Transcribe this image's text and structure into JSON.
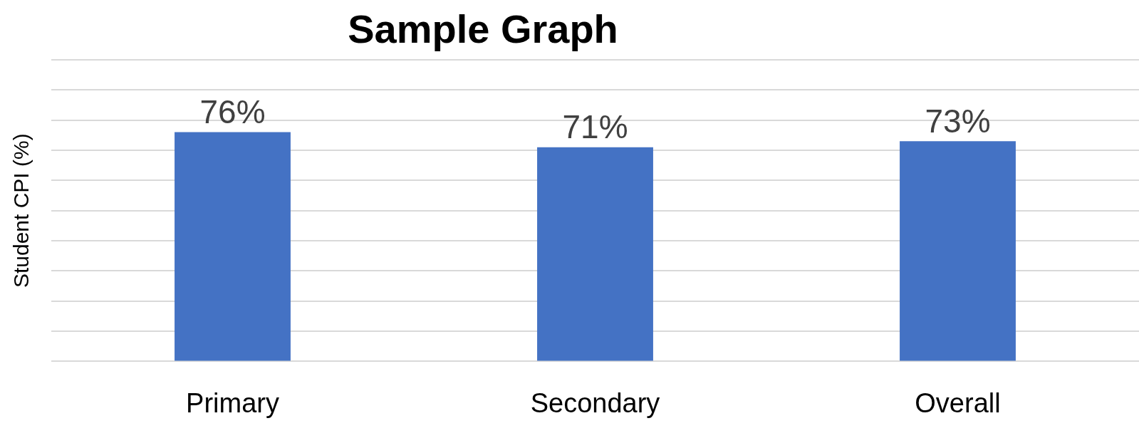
{
  "chart_data": {
    "type": "bar",
    "title": "Sample Graph",
    "ylabel": "Student CPI (%)",
    "categories": [
      "Primary",
      "Secondary",
      "Overall"
    ],
    "values": [
      76,
      71,
      73
    ],
    "value_labels": [
      "76%",
      "71%",
      "73%"
    ],
    "color": "#4472c4",
    "ylim": [
      0,
      100
    ],
    "yticks": [
      {
        "value": 0,
        "label": null
      },
      {
        "value": 10,
        "label": null
      },
      {
        "value": 20,
        "label": null
      },
      {
        "value": 30,
        "label": null
      },
      {
        "value": 40,
        "label": null
      },
      {
        "value": 50,
        "label": null
      },
      {
        "value": 60,
        "label": null
      },
      {
        "value": 70,
        "label": null
      },
      {
        "value": 80,
        "label": null
      },
      {
        "value": 90,
        "label": null
      },
      {
        "value": 100,
        "label": null
      }
    ],
    "tick_labels": "x",
    "grid": "y",
    "legend": false
  }
}
